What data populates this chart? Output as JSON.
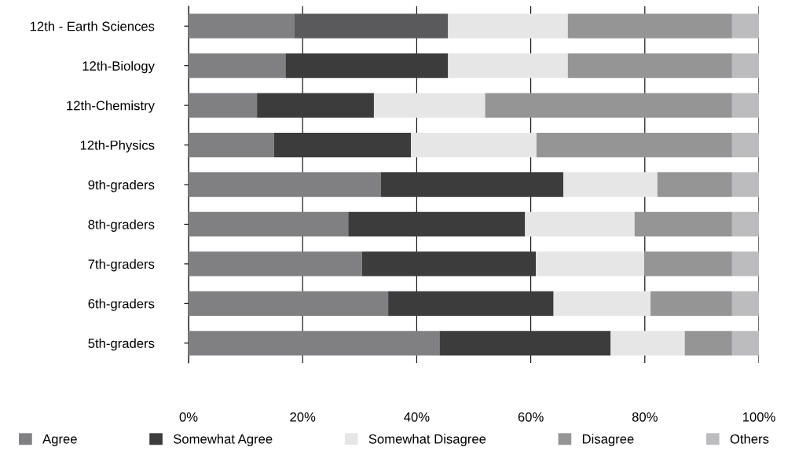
{
  "chart_data": {
    "type": "bar",
    "orientation": "horizontal",
    "stacked": true,
    "categories": [
      "12th - Earth Sciences",
      "12th-Biology",
      "12th-Chemistry",
      "12th-Physics",
      "9th-graders",
      "8th-graders",
      "7th-graders",
      "6th-graders",
      "5th-graders"
    ],
    "series": [
      {
        "name": "Agree",
        "color": "#808083",
        "values": [
          18.5,
          17,
          12,
          15,
          33.7,
          28,
          30.4,
          35,
          44
        ]
      },
      {
        "name": "Somewhat Agree",
        "color": "#3c3c3c",
        "colors": [
          "#5a5a5c",
          "#3c3c3c",
          "#3c3c3c",
          "#3c3c3c",
          "#3c3c3c",
          "#3c3c3c",
          "#3c3c3c",
          "#3c3c3c",
          "#3c3c3c"
        ],
        "values": [
          27,
          28.5,
          20.5,
          24,
          32,
          31,
          30.5,
          29,
          30
        ]
      },
      {
        "name": "Somewhat Disagree",
        "color": "#e6e6e7",
        "values": [
          21,
          21,
          19.5,
          22,
          16.5,
          19.2,
          19,
          17,
          13
        ]
      },
      {
        "name": "Disagree",
        "color": "#959596",
        "values": [
          28.8,
          28.8,
          43.3,
          34.3,
          13.1,
          17.1,
          15.4,
          14.3,
          8.3
        ]
      },
      {
        "name": "Others",
        "color": "#bcbcbe",
        "values": [
          4.7,
          4.7,
          4.7,
          4.7,
          4.7,
          4.7,
          4.7,
          4.7,
          4.7
        ]
      }
    ],
    "xlim": [
      0,
      100
    ],
    "xticks": [
      {
        "value": 0,
        "label": "0%"
      },
      {
        "value": 20,
        "label": "20%"
      },
      {
        "value": 40,
        "label": "40%"
      },
      {
        "value": 60,
        "label": "60%"
      },
      {
        "value": 80,
        "label": "80%"
      },
      {
        "value": 100,
        "label": "100%"
      }
    ],
    "grid": "x",
    "legend": "bottom"
  }
}
